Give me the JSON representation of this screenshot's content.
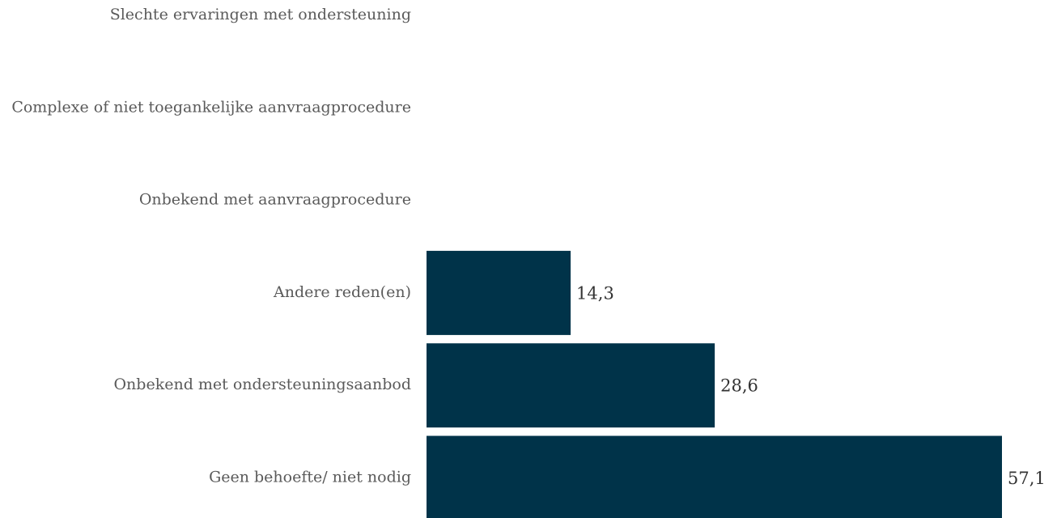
{
  "chart_data": {
    "type": "barh",
    "categories": [
      "Slechte ervaringen met ondersteuning",
      "Complexe of niet toegankelijke aanvraagprocedure",
      "Onbekend met aanvraagprocedure",
      "Andere reden(en)",
      "Onbekend met ondersteuningsaanbod",
      "Geen behoefte/ niet nodig"
    ],
    "values": [
      0,
      0,
      0,
      14.3,
      28.6,
      57.1
    ],
    "value_labels": [
      null,
      null,
      null,
      "14,3",
      "28,6",
      "57,1"
    ],
    "color": "#003349"
  }
}
